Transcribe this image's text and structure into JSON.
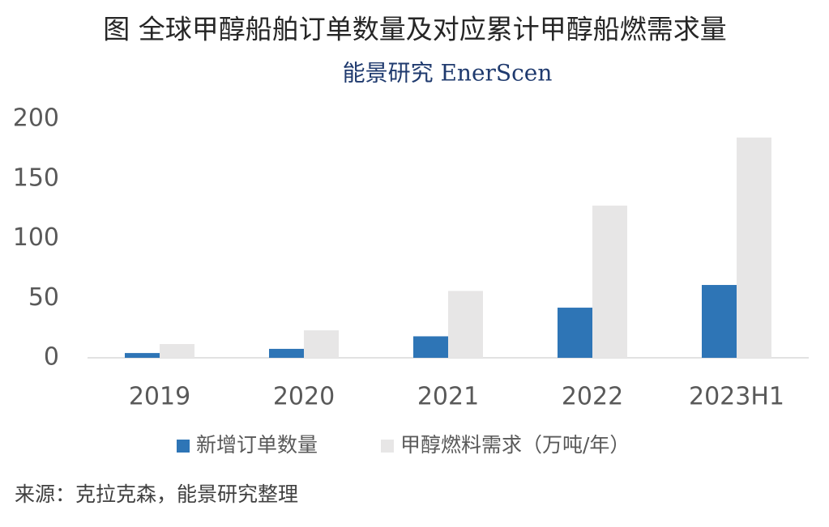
{
  "chart_data": {
    "type": "bar",
    "title": "图  全球甲醇船舶订单数量及对应累计甲醇船燃需求量",
    "subtitle": "能景研究 EnerScen",
    "categories": [
      "2019",
      "2020",
      "2021",
      "2022",
      "2023H1"
    ],
    "series": [
      {
        "name": "新增订单数量",
        "color": "#2e75b6",
        "values": [
          4,
          7.5,
          18,
          42,
          61
        ]
      },
      {
        "name": "甲醇燃料需求（万吨/年）",
        "color": "#e7e6e6",
        "values": [
          11.5,
          23,
          56,
          127.5,
          184.5
        ]
      }
    ],
    "ylim": [
      0,
      200
    ],
    "yticks": [
      0,
      50,
      100,
      150,
      200
    ],
    "grid": false,
    "legend": "bottom",
    "source": "来源：克拉克森，能景研究整理"
  }
}
